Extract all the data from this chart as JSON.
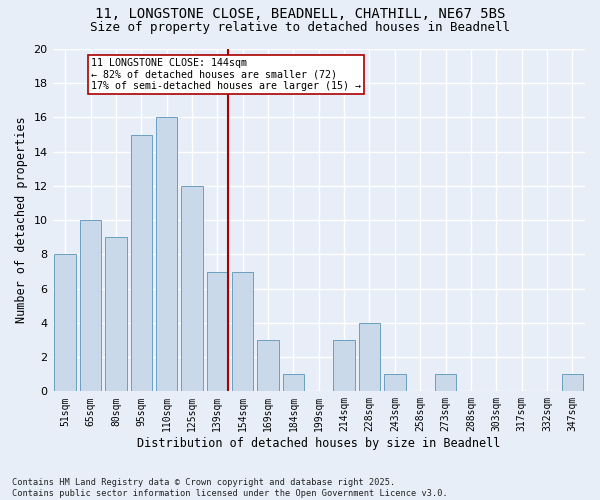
{
  "title1": "11, LONGSTONE CLOSE, BEADNELL, CHATHILL, NE67 5BS",
  "title2": "Size of property relative to detached houses in Beadnell",
  "xlabel": "Distribution of detached houses by size in Beadnell",
  "ylabel": "Number of detached properties",
  "bins": [
    "51sqm",
    "65sqm",
    "80sqm",
    "95sqm",
    "110sqm",
    "125sqm",
    "139sqm",
    "154sqm",
    "169sqm",
    "184sqm",
    "199sqm",
    "214sqm",
    "228sqm",
    "243sqm",
    "258sqm",
    "273sqm",
    "288sqm",
    "303sqm",
    "317sqm",
    "332sqm",
    "347sqm"
  ],
  "counts": [
    8,
    10,
    9,
    15,
    16,
    12,
    7,
    7,
    3,
    1,
    0,
    3,
    4,
    1,
    0,
    1,
    0,
    0,
    0,
    0,
    1
  ],
  "bar_color": "#c9d9ea",
  "bar_edge_color": "#6a9fc0",
  "vline_bin_idx": 6,
  "vline_color": "#aa0000",
  "annotation_text": "11 LONGSTONE CLOSE: 144sqm\n← 82% of detached houses are smaller (72)\n17% of semi-detached houses are larger (15) →",
  "annotation_box_color": "#ffffff",
  "annotation_box_edge": "#aa0000",
  "ylim": [
    0,
    20
  ],
  "yticks": [
    0,
    2,
    4,
    6,
    8,
    10,
    12,
    14,
    16,
    18,
    20
  ],
  "footer": "Contains HM Land Registry data © Crown copyright and database right 2025.\nContains public sector information licensed under the Open Government Licence v3.0.",
  "bg_color": "#e8eef8",
  "plot_bg_color": "#e8eef8",
  "grid_color": "#ffffff",
  "title_fontsize": 10,
  "subtitle_fontsize": 9,
  "bar_width": 0.85
}
